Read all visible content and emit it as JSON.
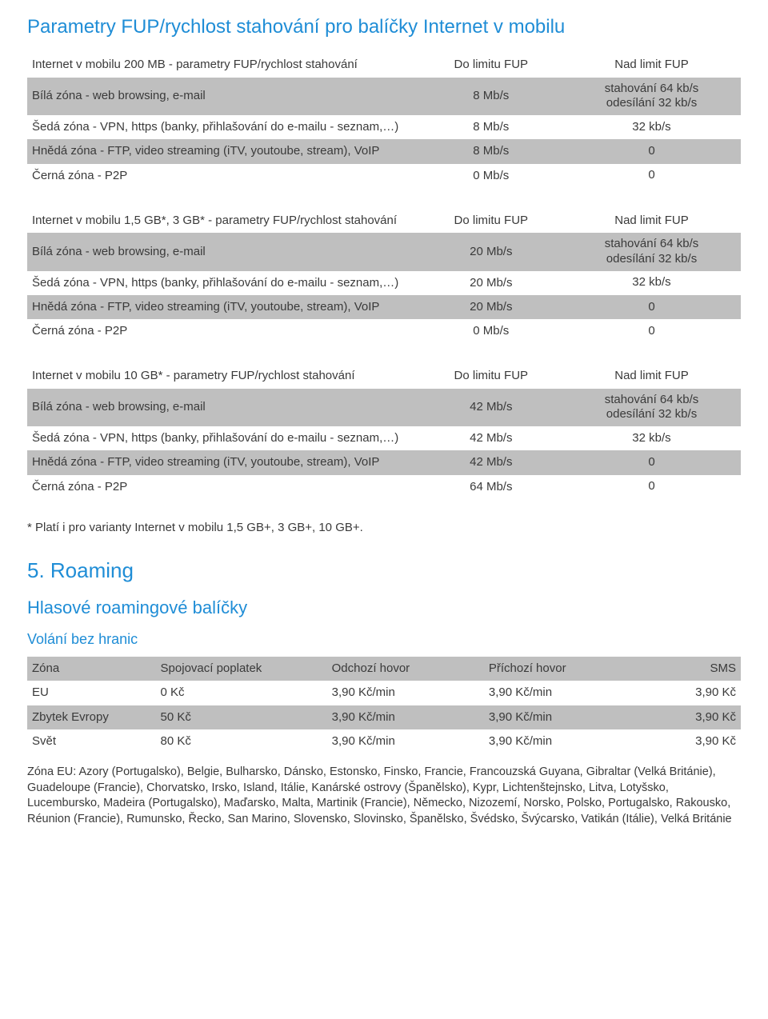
{
  "heading_main": "Parametry FUP/rychlost stahování pro balíčky Internet v mobilu",
  "tables": [
    {
      "header_title": "Internet v mobilu 200 MB - parametry FUP/rychlost stahování",
      "col_a": "Do limitu FUP",
      "col_b": "Nad limit FUP",
      "rows": [
        {
          "shade": "grey",
          "desc": "Bílá zóna - web browsing, e-mail",
          "a": "8 Mb/s",
          "b": "stahování 64 kb/s\nodesílání 32 kb/s"
        },
        {
          "shade": "white",
          "desc": "Šedá zóna - VPN, https (banky, přihlašování do e-mailu - seznam,…)",
          "a": "8 Mb/s",
          "b": "32 kb/s"
        },
        {
          "shade": "grey",
          "desc": "Hnědá zóna - FTP, video streaming (iTV, youtoube, stream), VoIP",
          "a": "8 Mb/s",
          "b": "0"
        },
        {
          "shade": "white",
          "desc": "Černá zóna - P2P",
          "a": "0 Mb/s",
          "b": "0"
        }
      ]
    },
    {
      "header_title": "Internet v mobilu 1,5 GB*, 3 GB* - parametry FUP/rychlost stahování",
      "col_a": "Do limitu FUP",
      "col_b": "Nad limit FUP",
      "rows": [
        {
          "shade": "grey",
          "desc": "Bílá zóna - web browsing, e-mail",
          "a": "20 Mb/s",
          "b": "stahování 64 kb/s\nodesílání 32 kb/s"
        },
        {
          "shade": "white",
          "desc": "Šedá zóna - VPN, https (banky, přihlašování do e-mailu - seznam,…)",
          "a": "20 Mb/s",
          "b": "32 kb/s"
        },
        {
          "shade": "grey",
          "desc": "Hnědá zóna - FTP, video streaming (iTV, youtoube, stream), VoIP",
          "a": "20 Mb/s",
          "b": "0"
        },
        {
          "shade": "white",
          "desc": "Černá zóna - P2P",
          "a": "0 Mb/s",
          "b": "0"
        }
      ]
    },
    {
      "header_title": "Internet v mobilu 10 GB* - parametry FUP/rychlost stahování",
      "col_a": "Do limitu FUP",
      "col_b": "Nad limit FUP",
      "rows": [
        {
          "shade": "grey",
          "desc": "Bílá zóna - web browsing, e-mail",
          "a": "42 Mb/s",
          "b": "stahování 64 kb/s\nodesílání 32 kb/s"
        },
        {
          "shade": "white",
          "desc": "Šedá zóna - VPN, https (banky, přihlašování do e-mailu - seznam,…)",
          "a": "42 Mb/s",
          "b": "32 kb/s"
        },
        {
          "shade": "grey",
          "desc": "Hnědá zóna - FTP, video streaming (iTV, youtoube, stream), VoIP",
          "a": "42 Mb/s",
          "b": "0"
        },
        {
          "shade": "white",
          "desc": "Černá zóna - P2P",
          "a": "64 Mb/s",
          "b": "0"
        }
      ]
    }
  ],
  "note_text": "* Platí i pro varianty Internet v mobilu 1,5 GB+, 3 GB+, 10 GB+.",
  "section5_title": "5. Roaming",
  "roaming_sub": "Hlasové roamingové balíčky",
  "roaming_sub2": "Volání bez hranic",
  "roam_header": {
    "c1": "Zóna",
    "c2": "Spojovací poplatek",
    "c3": "Odchozí hovor",
    "c4": "Příchozí hovor",
    "c5": "SMS"
  },
  "roam_rows": [
    {
      "alt": false,
      "c1": "EU",
      "c2": "0 Kč",
      "c3": "3,90 Kč/min",
      "c4": "3,90 Kč/min",
      "c5": "3,90 Kč"
    },
    {
      "alt": true,
      "c1": "Zbytek Evropy",
      "c2": "50 Kč",
      "c3": "3,90 Kč/min",
      "c4": "3,90 Kč/min",
      "c5": "3,90 Kč"
    },
    {
      "alt": false,
      "c1": "Svět",
      "c2": "80 Kč",
      "c3": "3,90 Kč/min",
      "c4": "3,90 Kč/min",
      "c5": "3,90 Kč"
    }
  ],
  "footnote_text": "Zóna EU: Azory (Portugalsko), Belgie, Bulharsko, Dánsko, Estonsko, Finsko, Francie, Francouzská Guyana, Gibraltar (Velká Británie), Guadeloupe (Francie), Chorvatsko, Irsko, Island, Itálie, Kanárské ostrovy (Španělsko), Kypr, Lichtenštejnsko, Litva, Lotyšsko, Lucembursko, Madeira (Portugalsko), Maďarsko, Malta, Martinik (Francie), Německo, Nizozemí, Norsko, Polsko, Portugalsko, Rakousko, Réunion (Francie), Rumunsko, Řecko, San Marino, Slovensko, Slovinsko, Španělsko, Švédsko, Švýcarsko, Vatikán (Itálie), Velká Británie",
  "colors": {
    "heading": "#1f8dd6",
    "row_grey": "#bfbfbf",
    "text": "#3a3a3a"
  }
}
